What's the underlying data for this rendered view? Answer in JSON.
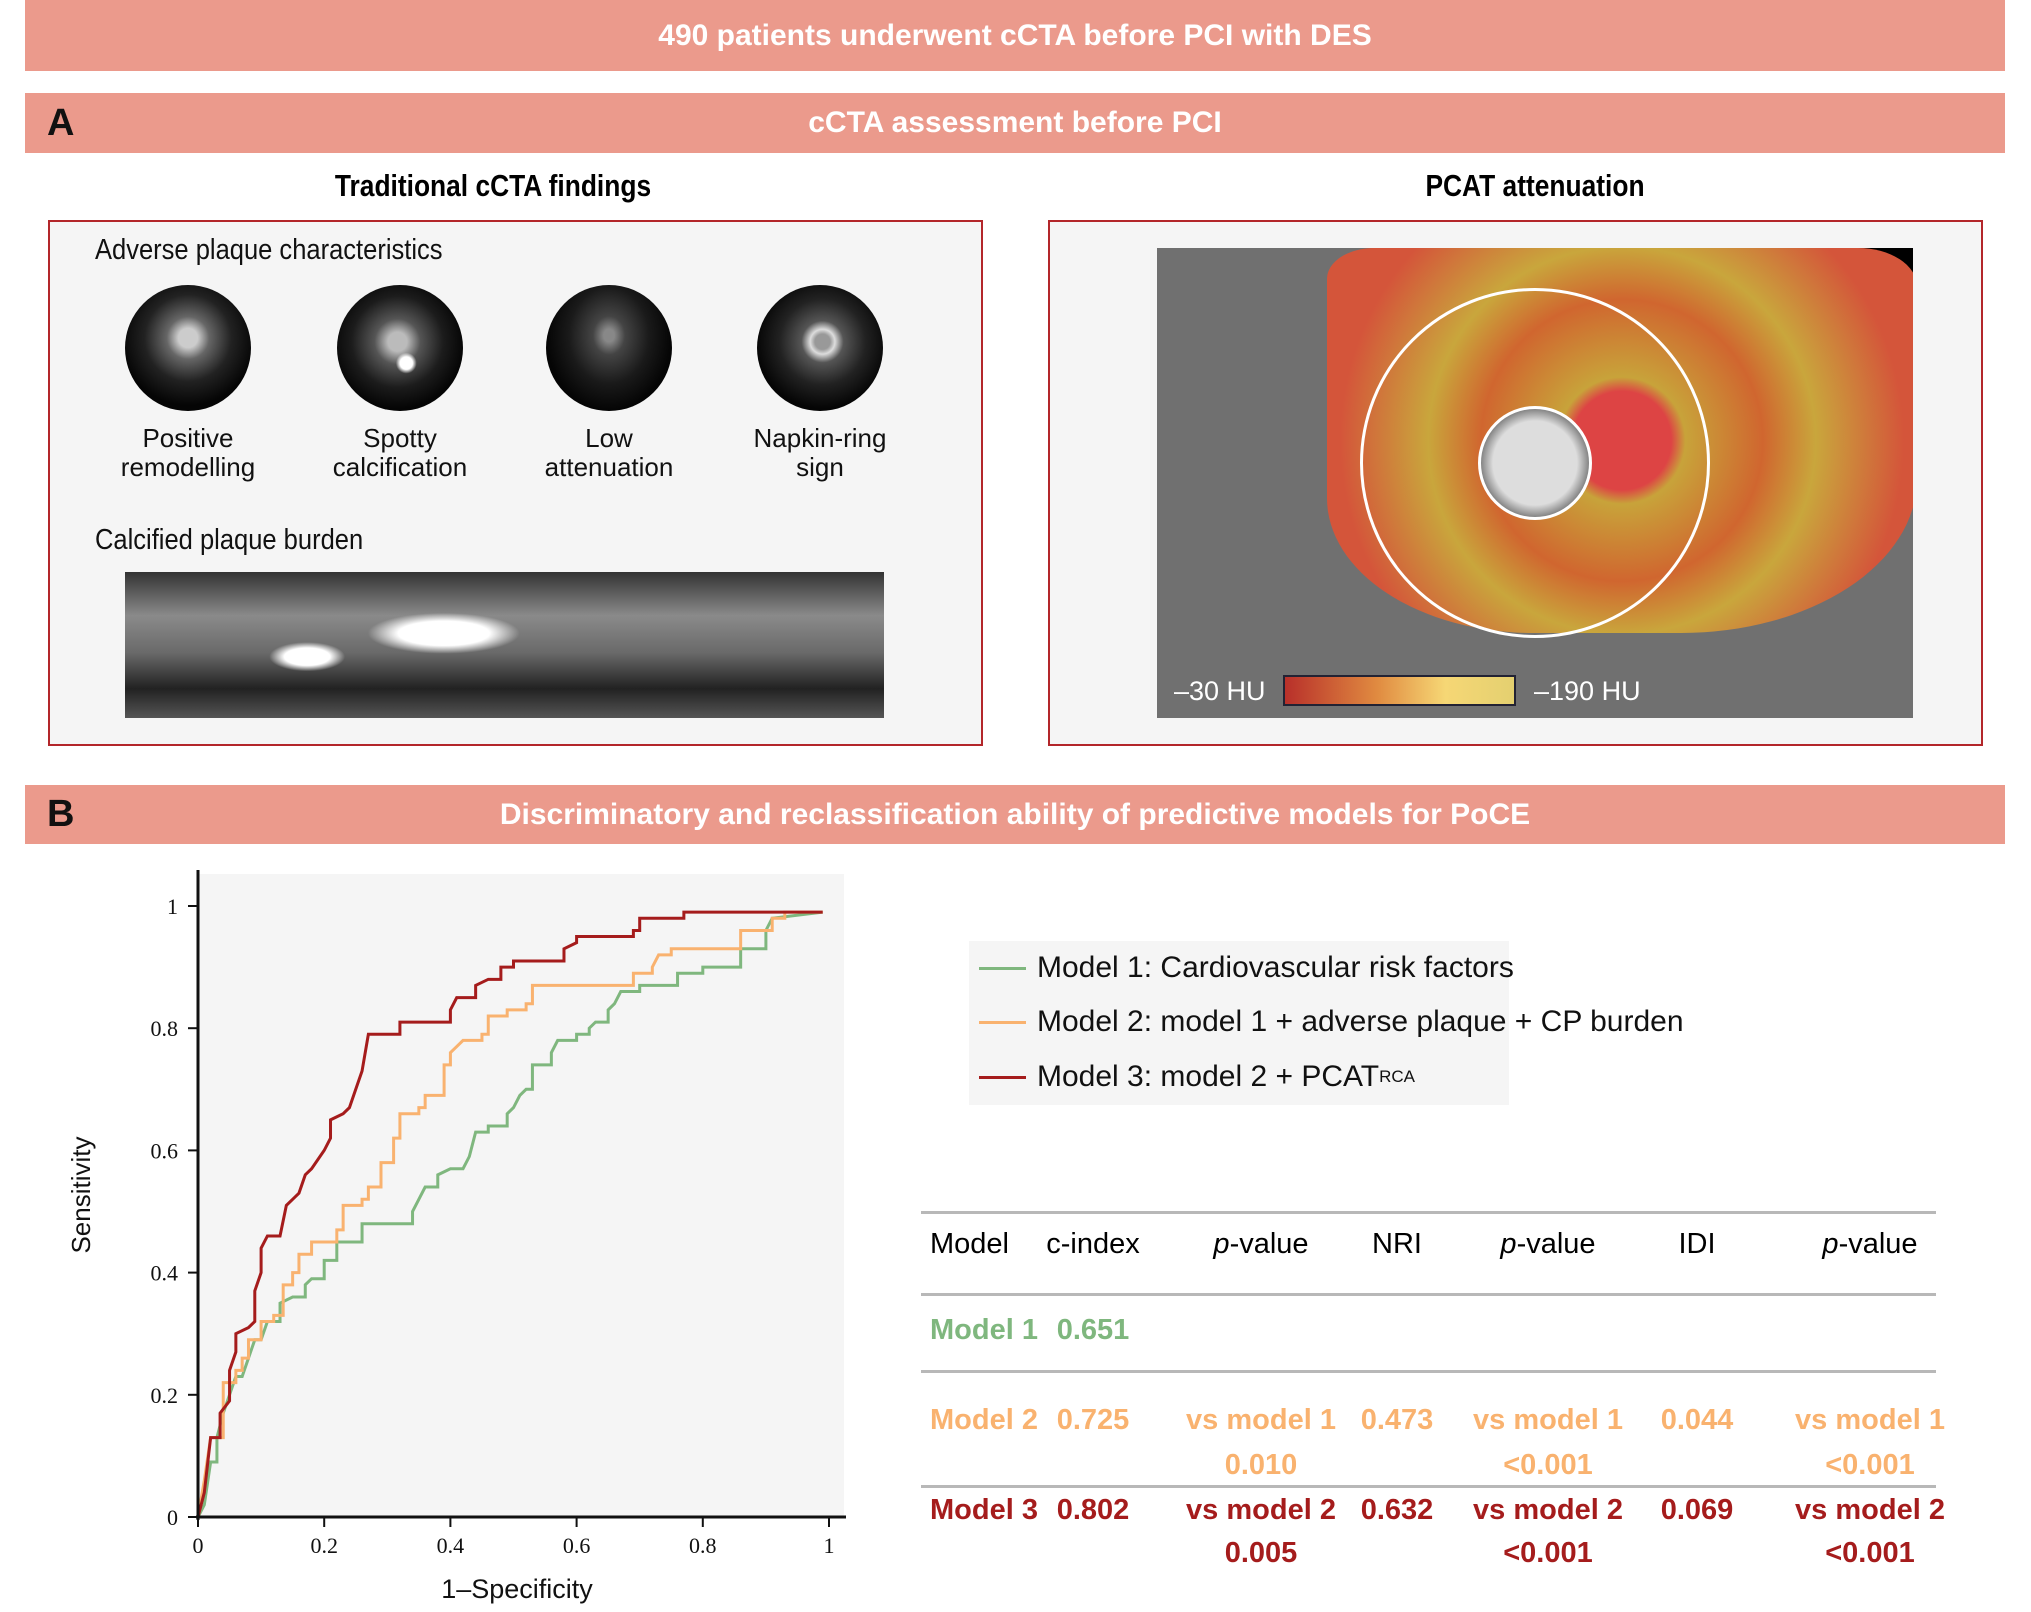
{
  "header": {
    "title": "490 patients underwent cCTA before PCI with DES"
  },
  "sectionA": {
    "letter": "A",
    "title": "cCTA assessment before PCI",
    "left": {
      "heading": "Traditional cCTA findings",
      "adverse_title": "Adverse plaque characteristics",
      "features": [
        {
          "line1": "Positive",
          "line2": "remodelling"
        },
        {
          "line1": "Spotty",
          "line2": "calcification"
        },
        {
          "line1": "Low",
          "line2": "attenuation"
        },
        {
          "line1": "Napkin-ring",
          "line2": "sign"
        }
      ],
      "burden_title": "Calcified plaque burden"
    },
    "right": {
      "heading": "PCAT attenuation",
      "scale_min": "–30 HU",
      "scale_max": "–190 HU"
    }
  },
  "sectionB": {
    "letter": "B",
    "title": "Discriminatory and reclassification ability of predictive models for PoCE"
  },
  "colors": {
    "banner": "#eb9a8c",
    "model1": "#7fb77e",
    "model2": "#f9b26f",
    "model3": "#a51c1c"
  },
  "chart_data": {
    "type": "line",
    "title": "",
    "xlabel": "1–Specificity",
    "ylabel": "Sensitivity",
    "xlim": [
      0,
      1
    ],
    "ylim": [
      0,
      1
    ],
    "xticks": [
      "0",
      "0.2",
      "0.4",
      "0.6",
      "0.8",
      "1"
    ],
    "yticks": [
      "0",
      "0.2",
      "0.4",
      "0.6",
      "0.8",
      "1"
    ],
    "legend_position": "right",
    "series": [
      {
        "name": "Model 1: Cardiovascular risk factors",
        "color": "#7fb77e",
        "points": [
          [
            0,
            0
          ],
          [
            0.01,
            0.02
          ],
          [
            0.02,
            0.09
          ],
          [
            0.03,
            0.09
          ],
          [
            0.03,
            0.13
          ],
          [
            0.04,
            0.17
          ],
          [
            0.05,
            0.2
          ],
          [
            0.06,
            0.23
          ],
          [
            0.07,
            0.23
          ],
          [
            0.08,
            0.26
          ],
          [
            0.09,
            0.29
          ],
          [
            0.1,
            0.29
          ],
          [
            0.11,
            0.32
          ],
          [
            0.13,
            0.32
          ],
          [
            0.13,
            0.35
          ],
          [
            0.15,
            0.36
          ],
          [
            0.17,
            0.36
          ],
          [
            0.17,
            0.38
          ],
          [
            0.18,
            0.39
          ],
          [
            0.2,
            0.39
          ],
          [
            0.2,
            0.42
          ],
          [
            0.22,
            0.42
          ],
          [
            0.22,
            0.45
          ],
          [
            0.26,
            0.45
          ],
          [
            0.26,
            0.48
          ],
          [
            0.34,
            0.48
          ],
          [
            0.34,
            0.5
          ],
          [
            0.35,
            0.52
          ],
          [
            0.36,
            0.54
          ],
          [
            0.38,
            0.54
          ],
          [
            0.38,
            0.56
          ],
          [
            0.4,
            0.57
          ],
          [
            0.42,
            0.57
          ],
          [
            0.43,
            0.59
          ],
          [
            0.44,
            0.63
          ],
          [
            0.46,
            0.63
          ],
          [
            0.46,
            0.64
          ],
          [
            0.49,
            0.64
          ],
          [
            0.49,
            0.66
          ],
          [
            0.5,
            0.67
          ],
          [
            0.51,
            0.69
          ],
          [
            0.52,
            0.7
          ],
          [
            0.53,
            0.7
          ],
          [
            0.53,
            0.74
          ],
          [
            0.56,
            0.74
          ],
          [
            0.56,
            0.76
          ],
          [
            0.57,
            0.78
          ],
          [
            0.6,
            0.78
          ],
          [
            0.6,
            0.79
          ],
          [
            0.62,
            0.79
          ],
          [
            0.62,
            0.8
          ],
          [
            0.63,
            0.81
          ],
          [
            0.65,
            0.81
          ],
          [
            0.65,
            0.83
          ],
          [
            0.66,
            0.84
          ],
          [
            0.67,
            0.86
          ],
          [
            0.7,
            0.86
          ],
          [
            0.7,
            0.87
          ],
          [
            0.76,
            0.87
          ],
          [
            0.76,
            0.89
          ],
          [
            0.8,
            0.89
          ],
          [
            0.8,
            0.9
          ],
          [
            0.86,
            0.9
          ],
          [
            0.86,
            0.93
          ],
          [
            0.9,
            0.93
          ],
          [
            0.9,
            0.96
          ],
          [
            0.91,
            0.98
          ],
          [
            0.99,
            0.99
          ]
        ]
      },
      {
        "name": "Model 2: model 1 + adverse plaque + CP burden",
        "color": "#f9b26f",
        "points": [
          [
            0,
            0
          ],
          [
            0.01,
            0.06
          ],
          [
            0.02,
            0.13
          ],
          [
            0.04,
            0.13
          ],
          [
            0.04,
            0.22
          ],
          [
            0.06,
            0.22
          ],
          [
            0.06,
            0.24
          ],
          [
            0.07,
            0.24
          ],
          [
            0.07,
            0.26
          ],
          [
            0.08,
            0.26
          ],
          [
            0.08,
            0.29
          ],
          [
            0.1,
            0.29
          ],
          [
            0.1,
            0.32
          ],
          [
            0.12,
            0.32
          ],
          [
            0.12,
            0.33
          ],
          [
            0.135,
            0.33
          ],
          [
            0.135,
            0.38
          ],
          [
            0.15,
            0.38
          ],
          [
            0.15,
            0.4
          ],
          [
            0.16,
            0.4
          ],
          [
            0.16,
            0.43
          ],
          [
            0.18,
            0.43
          ],
          [
            0.18,
            0.45
          ],
          [
            0.22,
            0.45
          ],
          [
            0.22,
            0.47
          ],
          [
            0.23,
            0.47
          ],
          [
            0.23,
            0.51
          ],
          [
            0.26,
            0.51
          ],
          [
            0.26,
            0.52
          ],
          [
            0.27,
            0.52
          ],
          [
            0.27,
            0.54
          ],
          [
            0.29,
            0.54
          ],
          [
            0.29,
            0.58
          ],
          [
            0.31,
            0.58
          ],
          [
            0.31,
            0.62
          ],
          [
            0.32,
            0.62
          ],
          [
            0.32,
            0.66
          ],
          [
            0.35,
            0.66
          ],
          [
            0.35,
            0.67
          ],
          [
            0.36,
            0.67
          ],
          [
            0.36,
            0.69
          ],
          [
            0.39,
            0.69
          ],
          [
            0.39,
            0.74
          ],
          [
            0.4,
            0.74
          ],
          [
            0.4,
            0.76
          ],
          [
            0.41,
            0.77
          ],
          [
            0.42,
            0.78
          ],
          [
            0.45,
            0.78
          ],
          [
            0.45,
            0.79
          ],
          [
            0.46,
            0.79
          ],
          [
            0.46,
            0.82
          ],
          [
            0.49,
            0.82
          ],
          [
            0.49,
            0.83
          ],
          [
            0.52,
            0.83
          ],
          [
            0.52,
            0.84
          ],
          [
            0.53,
            0.84
          ],
          [
            0.53,
            0.87
          ],
          [
            0.69,
            0.87
          ],
          [
            0.69,
            0.89
          ],
          [
            0.72,
            0.89
          ],
          [
            0.72,
            0.9
          ],
          [
            0.73,
            0.92
          ],
          [
            0.75,
            0.92
          ],
          [
            0.75,
            0.93
          ],
          [
            0.86,
            0.93
          ],
          [
            0.86,
            0.96
          ],
          [
            0.91,
            0.96
          ],
          [
            0.91,
            0.98
          ],
          [
            0.93,
            0.98
          ],
          [
            0.93,
            0.99
          ],
          [
            0.99,
            0.99
          ]
        ]
      },
      {
        "name": "Model 3: model 2 + PCAT",
        "name_sub": "RCA",
        "color": "#a51c1c",
        "points": [
          [
            0,
            0
          ],
          [
            0.01,
            0.04
          ],
          [
            0.02,
            0.13
          ],
          [
            0.035,
            0.13
          ],
          [
            0.035,
            0.17
          ],
          [
            0.05,
            0.19
          ],
          [
            0.05,
            0.24
          ],
          [
            0.06,
            0.27
          ],
          [
            0.06,
            0.3
          ],
          [
            0.08,
            0.31
          ],
          [
            0.09,
            0.32
          ],
          [
            0.09,
            0.37
          ],
          [
            0.1,
            0.4
          ],
          [
            0.1,
            0.44
          ],
          [
            0.11,
            0.46
          ],
          [
            0.13,
            0.46
          ],
          [
            0.14,
            0.51
          ],
          [
            0.15,
            0.52
          ],
          [
            0.16,
            0.53
          ],
          [
            0.17,
            0.56
          ],
          [
            0.18,
            0.57
          ],
          [
            0.2,
            0.6
          ],
          [
            0.21,
            0.62
          ],
          [
            0.21,
            0.65
          ],
          [
            0.23,
            0.66
          ],
          [
            0.24,
            0.67
          ],
          [
            0.25,
            0.7
          ],
          [
            0.26,
            0.73
          ],
          [
            0.27,
            0.79
          ],
          [
            0.32,
            0.79
          ],
          [
            0.32,
            0.81
          ],
          [
            0.4,
            0.81
          ],
          [
            0.4,
            0.83
          ],
          [
            0.41,
            0.85
          ],
          [
            0.44,
            0.85
          ],
          [
            0.44,
            0.87
          ],
          [
            0.46,
            0.88
          ],
          [
            0.48,
            0.88
          ],
          [
            0.48,
            0.9
          ],
          [
            0.5,
            0.9
          ],
          [
            0.5,
            0.91
          ],
          [
            0.58,
            0.91
          ],
          [
            0.58,
            0.93
          ],
          [
            0.6,
            0.94
          ],
          [
            0.6,
            0.95
          ],
          [
            0.69,
            0.95
          ],
          [
            0.69,
            0.96
          ],
          [
            0.7,
            0.96
          ],
          [
            0.7,
            0.98
          ],
          [
            0.77,
            0.98
          ],
          [
            0.77,
            0.99
          ],
          [
            0.99,
            0.99
          ]
        ]
      }
    ]
  },
  "table": {
    "headers": [
      "Model",
      "c-index",
      "p",
      "-value",
      "NRI",
      "p",
      "-value",
      "IDI",
      "p",
      "-value"
    ],
    "rows": [
      {
        "model": "Model 1",
        "cindex": "0.651"
      },
      {
        "model": "Model 2",
        "cindex": "0.725",
        "p1a": "vs model 1",
        "p1b": "0.010",
        "nri": "0.473",
        "p2a": "vs model 1",
        "p2b": "<0.001",
        "idi": "0.044",
        "p3a": "vs model 1",
        "p3b": "<0.001"
      },
      {
        "model": "Model 3",
        "cindex": "0.802",
        "p1a": "vs model 2",
        "p1b": "0.005",
        "nri": "0.632",
        "p2a": "vs model 2",
        "p2b": "<0.001",
        "idi": "0.069",
        "p3a": "vs model 2",
        "p3b": "<0.001"
      }
    ]
  }
}
